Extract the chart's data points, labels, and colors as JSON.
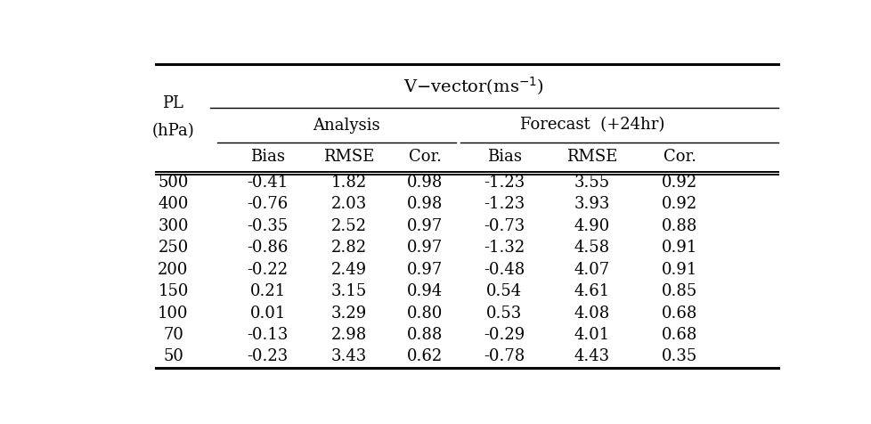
{
  "title": "V−vector(ms⁻¹)",
  "col_header_analysis": "Analysis",
  "col_header_forecast": "Forecast  (+24hr)",
  "col_subheaders": [
    "Bias",
    "RMSE",
    "Cor.",
    "Bias",
    "RMSE",
    "Cor."
  ],
  "pl_label_1": "PL",
  "pl_label_2": "(hPa)",
  "pressure_levels": [
    "500",
    "400",
    "300",
    "250",
    "200",
    "150",
    "100",
    "70",
    "50"
  ],
  "analysis_bias": [
    "-0.41",
    "-0.76",
    "-0.35",
    "-0.86",
    "-0.22",
    "0.21",
    "0.01",
    "-0.13",
    "-0.23"
  ],
  "analysis_rmse": [
    "1.82",
    "2.03",
    "2.52",
    "2.82",
    "2.49",
    "3.15",
    "3.29",
    "2.98",
    "3.43"
  ],
  "analysis_cor": [
    "0.98",
    "0.98",
    "0.97",
    "0.97",
    "0.97",
    "0.94",
    "0.80",
    "0.88",
    "0.62"
  ],
  "forecast_bias": [
    "-1.23",
    "-1.23",
    "-0.73",
    "-1.32",
    "-0.48",
    "0.54",
    "0.53",
    "-0.29",
    "-0.78"
  ],
  "forecast_rmse": [
    "3.55",
    "3.93",
    "4.90",
    "4.58",
    "4.07",
    "4.61",
    "4.08",
    "4.01",
    "4.43"
  ],
  "forecast_cor": [
    "0.92",
    "0.92",
    "0.88",
    "0.91",
    "0.91",
    "0.85",
    "0.68",
    "0.68",
    "0.35"
  ],
  "bg_color": "#ffffff",
  "text_color": "#000000",
  "fontsize": 13,
  "font_family": "serif"
}
